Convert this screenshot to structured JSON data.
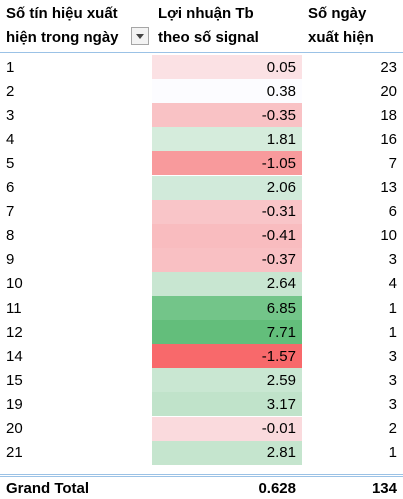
{
  "header": {
    "columns": [
      [
        "Số tín hiệu xuất",
        "hiện trong ngày"
      ],
      [
        "Lợi nhuận Tb",
        "theo số signal"
      ],
      [
        "Số ngày",
        "xuất hiện"
      ]
    ]
  },
  "table": {
    "rows": [
      [
        1,
        0.05,
        23
      ],
      [
        2,
        0.38,
        20
      ],
      [
        3,
        -0.35,
        18
      ],
      [
        4,
        1.81,
        16
      ],
      [
        5,
        -1.05,
        7
      ],
      [
        6,
        2.06,
        13
      ],
      [
        7,
        -0.31,
        6
      ],
      [
        8,
        -0.41,
        10
      ],
      [
        9,
        -0.37,
        3
      ],
      [
        10,
        2.64,
        4
      ],
      [
        11,
        6.85,
        1
      ],
      [
        12,
        7.71,
        1
      ],
      [
        14,
        -1.57,
        3
      ],
      [
        15,
        2.59,
        3
      ],
      [
        19,
        3.17,
        3
      ],
      [
        20,
        -0.01,
        2
      ],
      [
        21,
        2.81,
        1
      ]
    ],
    "fills": [
      "#fbe1e4",
      "#fcfcff",
      "#f9c2c5",
      "#d5ecdc",
      "#f89a9c",
      "#d1eada",
      "#f9c5c8",
      "#f9bcbf",
      "#f9c0c3",
      "#c8e6d1",
      "#73c589",
      "#63be7b",
      "#f8696b",
      "#c9e7d2",
      "#c0e3ca",
      "#fadadd",
      "#c5e5ce"
    ]
  },
  "grand_total": {
    "label": "Grand Total",
    "values": [
      0.628,
      134
    ]
  }
}
